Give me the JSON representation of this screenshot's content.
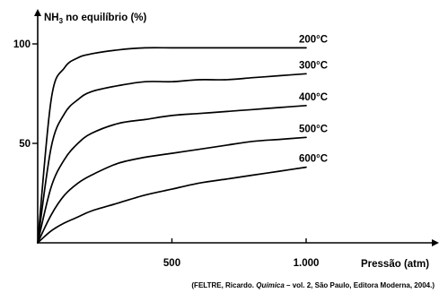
{
  "chart_data": {
    "type": "line",
    "ylabel_main": "NH",
    "ylabel_sub": "3",
    "ylabel_rest": " no equilíbrio (%)",
    "xlabel": "Pressão (atm)",
    "xlim": [
      0,
      1000
    ],
    "ylim": [
      0,
      120
    ],
    "xticks": [
      {
        "value": 500,
        "label": "500"
      },
      {
        "value": 1000,
        "label": "1.000"
      }
    ],
    "yticks": [
      {
        "value": 50,
        "label": "50"
      },
      {
        "value": 100,
        "label": "100"
      }
    ],
    "grid": false,
    "series": [
      {
        "name": "200°C",
        "x": [
          0,
          50,
          100,
          150,
          200,
          300,
          400,
          500,
          600,
          700,
          800,
          900,
          1000
        ],
        "y": [
          0,
          72,
          88,
          93,
          95,
          97,
          98,
          98,
          98,
          98,
          98,
          98,
          98
        ]
      },
      {
        "name": "300°C",
        "x": [
          0,
          50,
          100,
          150,
          200,
          300,
          400,
          500,
          600,
          700,
          800,
          900,
          1000
        ],
        "y": [
          0,
          48,
          65,
          72,
          76,
          79,
          81,
          81,
          82,
          82,
          83,
          84,
          85
        ]
      },
      {
        "name": "400°C",
        "x": [
          0,
          50,
          100,
          150,
          200,
          300,
          400,
          500,
          600,
          700,
          800,
          900,
          1000
        ],
        "y": [
          0,
          28,
          42,
          50,
          55,
          60,
          62,
          64,
          65,
          66,
          67,
          68,
          69
        ]
      },
      {
        "name": "500°C",
        "x": [
          0,
          50,
          100,
          150,
          200,
          300,
          400,
          500,
          600,
          700,
          800,
          900,
          1000
        ],
        "y": [
          0,
          14,
          24,
          30,
          34,
          40,
          43,
          45,
          47,
          49,
          51,
          52,
          53
        ]
      },
      {
        "name": "600°C",
        "x": [
          0,
          50,
          100,
          150,
          200,
          300,
          400,
          500,
          600,
          700,
          800,
          900,
          1000
        ],
        "y": [
          0,
          6,
          10,
          13,
          16,
          20,
          24,
          27,
          30,
          32,
          34,
          36,
          38
        ]
      }
    ]
  },
  "source": {
    "prefix": "(FELTRE, Ricardo. ",
    "title": "Química",
    "suffix": " – vol. 2, São Paulo, Editora Moderna, 2004.)"
  }
}
